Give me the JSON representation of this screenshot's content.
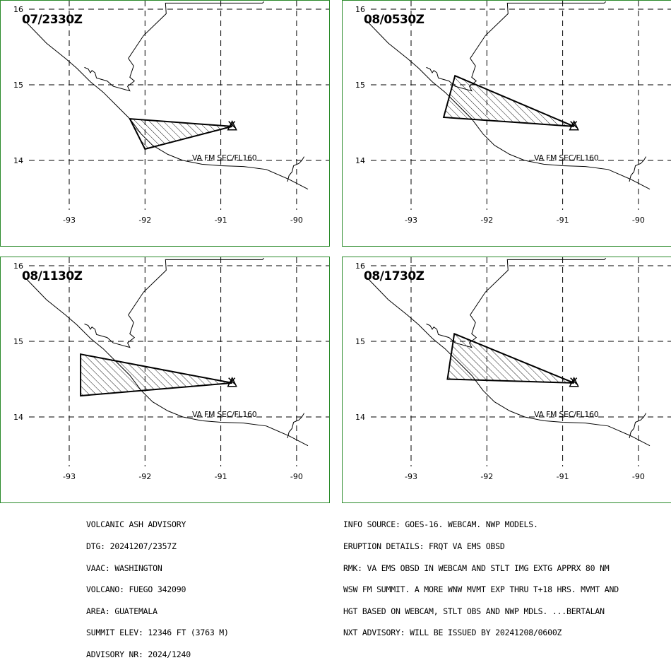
{
  "panels": [
    {
      "time": "07/2330Z",
      "label": "VA FM SEC/FL160",
      "polygon": [
        [
          -92.2,
          14.55
        ],
        [
          -90.85,
          14.45
        ],
        [
          -92.0,
          14.15
        ],
        [
          -92.2,
          14.55
        ]
      ]
    },
    {
      "time": "08/0530Z",
      "label": "VA FM SEC/FL160",
      "polygon": [
        [
          -92.42,
          15.12
        ],
        [
          -90.85,
          14.45
        ],
        [
          -92.57,
          14.57
        ],
        [
          -92.42,
          15.12
        ]
      ]
    },
    {
      "time": "08/1130Z",
      "label": "VA FM SEC/FL160",
      "polygon": [
        [
          -92.85,
          14.83
        ],
        [
          -90.85,
          14.45
        ],
        [
          -92.85,
          14.28
        ],
        [
          -92.85,
          14.83
        ]
      ]
    },
    {
      "time": "08/1730Z",
      "label": "VA FM SEC/FL160",
      "polygon": [
        [
          -92.43,
          15.1
        ],
        [
          -90.85,
          14.45
        ],
        [
          -92.52,
          14.5
        ],
        [
          -92.43,
          15.1
        ]
      ]
    }
  ],
  "axes": {
    "lon_ticks": [
      "-93",
      "-92",
      "-91",
      "-90"
    ],
    "lat_ticks": [
      "16",
      "15",
      "14"
    ]
  },
  "volcano_marker": "triangle",
  "colors": {
    "frame": "#2a8a2a",
    "ash": "#000000"
  },
  "footer_left": [
    "VOLCANIC ASH ADVISORY",
    "DTG: 20241207/2357Z",
    "VAAC: WASHINGTON",
    "VOLCANO: FUEGO 342090",
    "AREA: GUATEMALA",
    "SUMMIT ELEV: 12346 FT (3763 M)",
    "ADVISORY NR: 2024/1240"
  ],
  "footer_right": [
    "INFO SOURCE: GOES-16. WEBCAM. NWP MODELS.",
    "ERUPTION DETAILS: FRQT VA EMS OBSD",
    "RMK: VA EMS OBSD IN WEBCAM AND STLT IMG EXTG APPRX 80 NM",
    "WSW FM SUMMIT. A MORE WNW MVMT EXP THRU T+18 HRS. MVMT AND",
    "HGT BASED ON WEBCAM, STLT OBS AND NWP MDLS. ...BERTALAN",
    "NXT ADVISORY: WILL BE ISSUED BY 20241208/0600Z"
  ]
}
